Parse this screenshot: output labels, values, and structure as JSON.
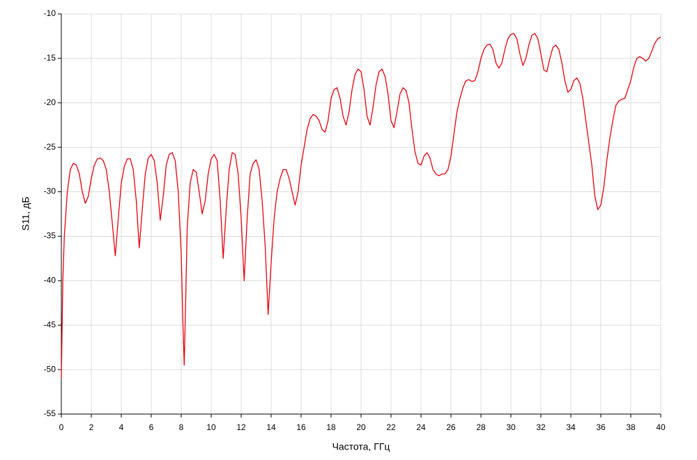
{
  "chart_data": {
    "type": "line",
    "x_label": "Частота, ГГц",
    "y_label": "S11, дБ",
    "xlim": [
      0,
      40
    ],
    "ylim": [
      -55,
      -10
    ],
    "xticks": [
      0,
      2,
      4,
      6,
      8,
      10,
      12,
      14,
      16,
      18,
      20,
      22,
      24,
      26,
      28,
      30,
      32,
      34,
      36,
      38,
      40
    ],
    "yticks": [
      -10,
      -15,
      -20,
      -25,
      -30,
      -35,
      -40,
      -45,
      -50,
      -55
    ],
    "grid": true,
    "x": [
      0,
      0.1,
      0.2,
      0.4,
      0.6,
      0.8,
      1.0,
      1.2,
      1.4,
      1.6,
      1.8,
      2.0,
      2.2,
      2.4,
      2.6,
      2.8,
      3.0,
      3.2,
      3.4,
      3.6,
      3.8,
      4.0,
      4.2,
      4.4,
      4.6,
      4.8,
      5.0,
      5.2,
      5.4,
      5.6,
      5.8,
      6.0,
      6.2,
      6.4,
      6.6,
      6.8,
      7.0,
      7.2,
      7.4,
      7.6,
      7.8,
      8.0,
      8.1,
      8.2,
      8.3,
      8.4,
      8.6,
      8.8,
      9.0,
      9.2,
      9.4,
      9.6,
      9.8,
      10.0,
      10.2,
      10.4,
      10.6,
      10.8,
      11.0,
      11.2,
      11.4,
      11.6,
      11.8,
      12.0,
      12.2,
      12.4,
      12.6,
      12.8,
      13.0,
      13.2,
      13.4,
      13.6,
      13.8,
      14.0,
      14.2,
      14.4,
      14.6,
      14.8,
      15.0,
      15.2,
      15.4,
      15.6,
      15.8,
      16.0,
      16.2,
      16.4,
      16.6,
      16.8,
      17.0,
      17.2,
      17.4,
      17.6,
      17.8,
      18.0,
      18.2,
      18.4,
      18.6,
      18.8,
      19.0,
      19.2,
      19.4,
      19.6,
      19.8,
      20.0,
      20.2,
      20.4,
      20.6,
      20.8,
      21.0,
      21.2,
      21.4,
      21.6,
      21.8,
      22.0,
      22.2,
      22.4,
      22.6,
      22.8,
      23.0,
      23.2,
      23.4,
      23.6,
      23.8,
      24.0,
      24.2,
      24.4,
      24.6,
      24.8,
      25.0,
      25.2,
      25.4,
      25.6,
      25.8,
      26.0,
      26.2,
      26.4,
      26.6,
      26.8,
      27.0,
      27.2,
      27.4,
      27.6,
      27.8,
      28.0,
      28.2,
      28.4,
      28.6,
      28.8,
      29.0,
      29.2,
      29.4,
      29.6,
      29.8,
      30.0,
      30.2,
      30.4,
      30.6,
      30.8,
      31.0,
      31.2,
      31.4,
      31.6,
      31.8,
      32.0,
      32.2,
      32.4,
      32.6,
      32.8,
      33.0,
      33.2,
      33.4,
      33.6,
      33.8,
      34.0,
      34.2,
      34.4,
      34.6,
      34.8,
      35.0,
      35.2,
      35.4,
      35.6,
      35.8,
      36.0,
      36.2,
      36.4,
      36.6,
      36.8,
      37.0,
      37.2,
      37.4,
      37.6,
      37.8,
      38.0,
      38.2,
      38.4,
      38.6,
      38.8,
      39.0,
      39.2,
      39.4,
      39.6,
      39.8,
      40.0
    ],
    "series": [
      {
        "color": "#e8000b",
        "values": [
          -51,
          -40,
          -35,
          -30,
          -27.5,
          -26.8,
          -27,
          -28,
          -30,
          -31.3,
          -30.5,
          -28.5,
          -27,
          -26.3,
          -26.2,
          -26.5,
          -27.5,
          -30,
          -33.5,
          -37.2,
          -33,
          -29,
          -27.2,
          -26.3,
          -26.3,
          -27.5,
          -31,
          -36.3,
          -32,
          -28,
          -26.2,
          -25.8,
          -26.5,
          -29,
          -33.2,
          -30.5,
          -27,
          -25.8,
          -25.6,
          -26.5,
          -30,
          -37,
          -44,
          -49.5,
          -42,
          -34,
          -29,
          -27.5,
          -27.8,
          -30,
          -32.5,
          -31,
          -28,
          -26.3,
          -25.8,
          -26.5,
          -31,
          -37.5,
          -32,
          -27.5,
          -25.6,
          -25.8,
          -28,
          -33,
          -40,
          -33,
          -28,
          -26.8,
          -26.4,
          -27.5,
          -31,
          -36,
          -43.8,
          -38,
          -33,
          -30,
          -28.5,
          -27.5,
          -27.5,
          -28.5,
          -30,
          -31.5,
          -30,
          -27,
          -25,
          -23,
          -21.8,
          -21.3,
          -21.5,
          -22,
          -23,
          -23.3,
          -22,
          -19.5,
          -18.5,
          -18.3,
          -19.5,
          -21.5,
          -22.5,
          -21,
          -18.5,
          -16.8,
          -16.2,
          -16.5,
          -18.5,
          -21.5,
          -22.5,
          -20.5,
          -18,
          -16.5,
          -16.2,
          -17,
          -19,
          -22,
          -22.8,
          -21,
          -19,
          -18.3,
          -18.6,
          -20,
          -23,
          -25.5,
          -26.8,
          -27,
          -26,
          -25.6,
          -26.2,
          -27.5,
          -28,
          -28.2,
          -28,
          -28,
          -27.5,
          -26,
          -23.5,
          -21,
          -19.5,
          -18.3,
          -17.5,
          -17.4,
          -17.6,
          -17.5,
          -16.5,
          -15,
          -14,
          -13.5,
          -13.4,
          -14,
          -15.5,
          -16.1,
          -15.5,
          -14,
          -12.8,
          -12.3,
          -12.2,
          -12.8,
          -14.5,
          -15.8,
          -15,
          -13.5,
          -12.4,
          -12.2,
          -12.8,
          -14.5,
          -16.3,
          -16.5,
          -15,
          -13.8,
          -13.5,
          -14,
          -15.5,
          -17.5,
          -18.8,
          -18.5,
          -17.5,
          -17.2,
          -17.8,
          -19.5,
          -22,
          -24.5,
          -27,
          -30.5,
          -32,
          -31.5,
          -29.5,
          -26.5,
          -24,
          -22,
          -20.3,
          -19.8,
          -19.6,
          -19.5,
          -18.5,
          -17.5,
          -16,
          -15,
          -14.8,
          -15,
          -15.3,
          -15,
          -14.2,
          -13.3,
          -12.8,
          -12.6
        ]
      }
    ]
  }
}
